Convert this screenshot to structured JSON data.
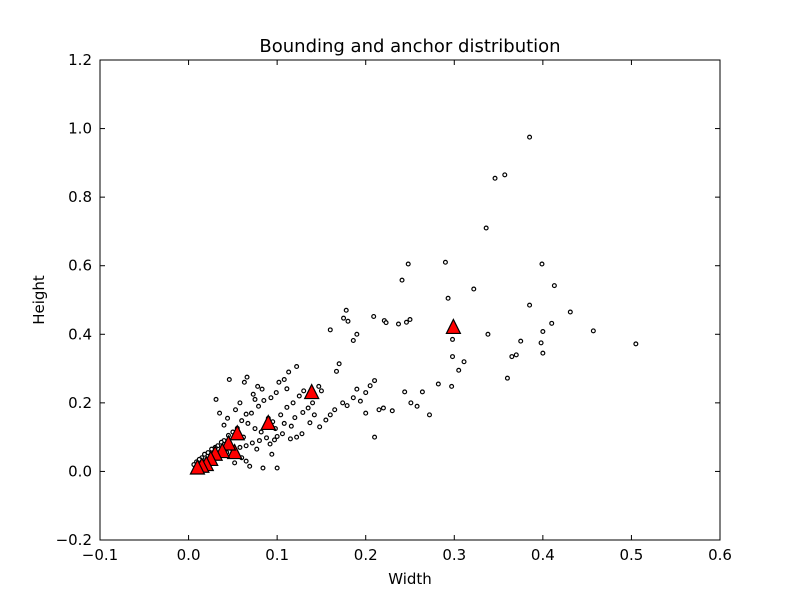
{
  "chart_data": {
    "type": "scatter",
    "title": "Bounding and anchor distribution",
    "xlabel": "Width",
    "ylabel": "Height",
    "xlim": [
      -0.1,
      0.6
    ],
    "ylim": [
      -0.2,
      1.2
    ],
    "xticks": [
      -0.1,
      0.0,
      0.1,
      0.2,
      0.3,
      0.4,
      0.5,
      0.6
    ],
    "yticks": [
      -0.2,
      0.0,
      0.2,
      0.4,
      0.6,
      0.8,
      1.0,
      1.2
    ],
    "xtick_labels": [
      "−0.1",
      "0.0",
      "0.1",
      "0.2",
      "0.3",
      "0.4",
      "0.5",
      "0.6"
    ],
    "ytick_labels": [
      "−0.2",
      "0.0",
      "0.2",
      "0.4",
      "0.6",
      "0.8",
      "1.0",
      "1.2"
    ],
    "grid": false,
    "series": [
      {
        "marker": "circle",
        "color": "#ffffff",
        "edge_color": "#000000",
        "points": [
          [
            0.385,
            0.975
          ],
          [
            0.346,
            0.855
          ],
          [
            0.357,
            0.865
          ],
          [
            0.336,
            0.71
          ],
          [
            0.29,
            0.61
          ],
          [
            0.248,
            0.605
          ],
          [
            0.241,
            0.558
          ],
          [
            0.399,
            0.605
          ],
          [
            0.413,
            0.542
          ],
          [
            0.322,
            0.532
          ],
          [
            0.293,
            0.505
          ],
          [
            0.385,
            0.485
          ],
          [
            0.431,
            0.465
          ],
          [
            0.457,
            0.41
          ],
          [
            0.505,
            0.372
          ],
          [
            0.338,
            0.4
          ],
          [
            0.298,
            0.385
          ],
          [
            0.41,
            0.432
          ],
          [
            0.4,
            0.408
          ],
          [
            0.375,
            0.38
          ],
          [
            0.398,
            0.375
          ],
          [
            0.37,
            0.34
          ],
          [
            0.365,
            0.335
          ],
          [
            0.4,
            0.345
          ],
          [
            0.298,
            0.335
          ],
          [
            0.305,
            0.295
          ],
          [
            0.311,
            0.32
          ],
          [
            0.36,
            0.272
          ],
          [
            0.297,
            0.248
          ],
          [
            0.282,
            0.255
          ],
          [
            0.264,
            0.232
          ],
          [
            0.244,
            0.232
          ],
          [
            0.251,
            0.2
          ],
          [
            0.258,
            0.19
          ],
          [
            0.272,
            0.165
          ],
          [
            0.21,
            0.1
          ],
          [
            0.178,
            0.47
          ],
          [
            0.175,
            0.447
          ],
          [
            0.18,
            0.438
          ],
          [
            0.19,
            0.4
          ],
          [
            0.186,
            0.382
          ],
          [
            0.16,
            0.413
          ],
          [
            0.209,
            0.452
          ],
          [
            0.221,
            0.44
          ],
          [
            0.223,
            0.434
          ],
          [
            0.237,
            0.43
          ],
          [
            0.246,
            0.435
          ],
          [
            0.25,
            0.443
          ],
          [
            0.17,
            0.314
          ],
          [
            0.167,
            0.292
          ],
          [
            0.122,
            0.306
          ],
          [
            0.113,
            0.29
          ],
          [
            0.19,
            0.24
          ],
          [
            0.205,
            0.25
          ],
          [
            0.21,
            0.265
          ],
          [
            0.2,
            0.23
          ],
          [
            0.194,
            0.205
          ],
          [
            0.186,
            0.215
          ],
          [
            0.179,
            0.192
          ],
          [
            0.22,
            0.185
          ],
          [
            0.215,
            0.18
          ],
          [
            0.2,
            0.17
          ],
          [
            0.23,
            0.177
          ],
          [
            0.174,
            0.2
          ],
          [
            0.165,
            0.18
          ],
          [
            0.16,
            0.165
          ],
          [
            0.155,
            0.15
          ],
          [
            0.148,
            0.13
          ],
          [
            0.147,
            0.248
          ],
          [
            0.15,
            0.235
          ],
          [
            0.14,
            0.2
          ],
          [
            0.135,
            0.185
          ],
          [
            0.129,
            0.172
          ],
          [
            0.12,
            0.157
          ],
          [
            0.116,
            0.132
          ],
          [
            0.106,
            0.11
          ],
          [
            0.1,
            0.102
          ],
          [
            0.097,
            0.092
          ],
          [
            0.092,
            0.08
          ],
          [
            0.09,
            0.155
          ],
          [
            0.108,
            0.268
          ],
          [
            0.102,
            0.26
          ],
          [
            0.111,
            0.241
          ],
          [
            0.099,
            0.23
          ],
          [
            0.093,
            0.215
          ],
          [
            0.085,
            0.207
          ],
          [
            0.079,
            0.19
          ],
          [
            0.075,
            0.21
          ],
          [
            0.071,
            0.17
          ],
          [
            0.065,
            0.167
          ],
          [
            0.06,
            0.148
          ],
          [
            0.055,
            0.126
          ],
          [
            0.05,
            0.115
          ],
          [
            0.045,
            0.105
          ],
          [
            0.04,
            0.09
          ],
          [
            0.037,
            0.085
          ],
          [
            0.033,
            0.075
          ],
          [
            0.03,
            0.07
          ],
          [
            0.026,
            0.065
          ],
          [
            0.022,
            0.055
          ],
          [
            0.018,
            0.05
          ],
          [
            0.015,
            0.04
          ],
          [
            0.012,
            0.035
          ],
          [
            0.009,
            0.028
          ],
          [
            0.006,
            0.02
          ],
          [
            0.008,
            0.012
          ],
          [
            0.013,
            0.02
          ],
          [
            0.017,
            0.027
          ],
          [
            0.022,
            0.033
          ],
          [
            0.028,
            0.04
          ],
          [
            0.035,
            0.047
          ],
          [
            0.043,
            0.055
          ],
          [
            0.05,
            0.062
          ],
          [
            0.058,
            0.07
          ],
          [
            0.065,
            0.075
          ],
          [
            0.072,
            0.083
          ],
          [
            0.08,
            0.09
          ],
          [
            0.088,
            0.098
          ],
          [
            0.046,
            0.268
          ],
          [
            0.066,
            0.275
          ],
          [
            0.063,
            0.26
          ],
          [
            0.078,
            0.248
          ],
          [
            0.073,
            0.225
          ],
          [
            0.083,
            0.24
          ],
          [
            0.031,
            0.21
          ],
          [
            0.035,
            0.17
          ],
          [
            0.04,
            0.135
          ],
          [
            0.044,
            0.155
          ],
          [
            0.053,
            0.18
          ],
          [
            0.058,
            0.2
          ],
          [
            0.067,
            0.14
          ],
          [
            0.075,
            0.125
          ],
          [
            0.082,
            0.115
          ],
          [
            0.087,
            0.13
          ],
          [
            0.095,
            0.145
          ],
          [
            0.104,
            0.165
          ],
          [
            0.111,
            0.187
          ],
          [
            0.118,
            0.2
          ],
          [
            0.125,
            0.22
          ],
          [
            0.13,
            0.235
          ],
          [
            0.137,
            0.142
          ],
          [
            0.142,
            0.165
          ],
          [
            0.128,
            0.11
          ],
          [
            0.122,
            0.1
          ],
          [
            0.115,
            0.095
          ],
          [
            0.108,
            0.14
          ],
          [
            0.098,
            0.125
          ],
          [
            0.06,
            0.04
          ],
          [
            0.065,
            0.03
          ],
          [
            0.052,
            0.025
          ],
          [
            0.069,
            0.015
          ],
          [
            0.084,
            0.01
          ],
          [
            0.094,
            0.05
          ],
          [
            0.1,
            0.01
          ],
          [
            0.077,
            0.065
          ],
          [
            0.062,
            0.1
          ]
        ]
      },
      {
        "marker": "triangle",
        "color": "#ff0000",
        "edge_color": "#000000",
        "points": [
          [
            0.299,
            0.42
          ],
          [
            0.139,
            0.23
          ],
          [
            0.09,
            0.14
          ],
          [
            0.055,
            0.11
          ],
          [
            0.052,
            0.055
          ],
          [
            0.045,
            0.08
          ],
          [
            0.038,
            0.058
          ],
          [
            0.03,
            0.05
          ],
          [
            0.025,
            0.035
          ],
          [
            0.02,
            0.02
          ],
          [
            0.015,
            0.015
          ],
          [
            0.01,
            0.01
          ]
        ]
      }
    ]
  }
}
